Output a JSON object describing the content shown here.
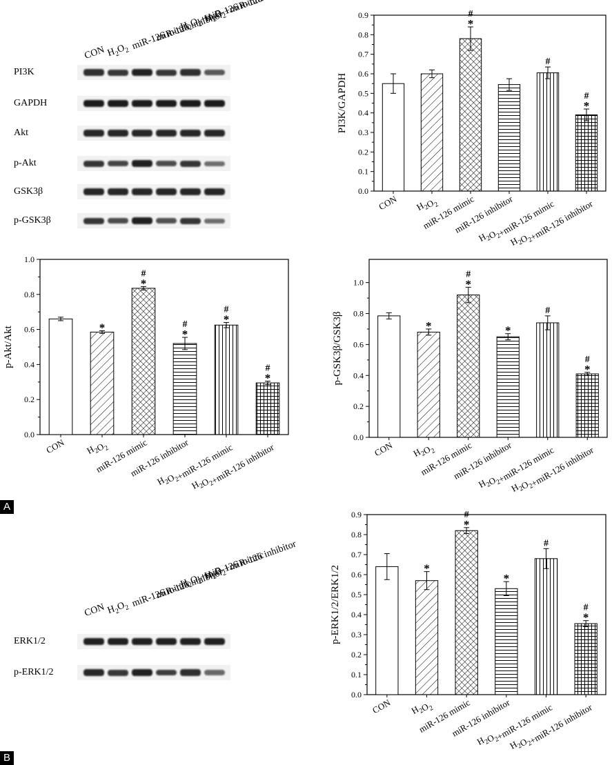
{
  "panel_labels": [
    "A",
    "B"
  ],
  "lane_labels": [
    "CON",
    "H2O2",
    "miR-126 mimic",
    "miR-126 inhibitor",
    "H2O2+miR-126 mimic",
    "H2O2+miR-126 inhibitor"
  ],
  "blot_A": {
    "rows": [
      "PI3K",
      "GAPDH",
      "Akt",
      "p-Akt",
      "GSK3β",
      "p-GSK3β"
    ],
    "intensities": [
      [
        0.85,
        0.8,
        0.95,
        0.8,
        0.85,
        0.55
      ],
      [
        1.0,
        1.0,
        1.0,
        1.0,
        1.0,
        1.0
      ],
      [
        0.9,
        0.9,
        0.9,
        0.9,
        0.9,
        0.9
      ],
      [
        0.8,
        0.7,
        0.95,
        0.65,
        0.8,
        0.4
      ],
      [
        0.9,
        0.9,
        0.9,
        0.9,
        0.9,
        0.9
      ],
      [
        0.8,
        0.65,
        0.95,
        0.6,
        0.8,
        0.4
      ]
    ]
  },
  "blot_B": {
    "rows": [
      "ERK1/2",
      "p-ERK1/2"
    ],
    "intensities": [
      [
        0.95,
        0.95,
        0.95,
        0.95,
        0.95,
        0.95
      ],
      [
        0.9,
        0.8,
        0.95,
        0.75,
        0.85,
        0.45
      ]
    ]
  },
  "chart_data": [
    {
      "type": "bar",
      "ylabel": "PI3K/GAPDH",
      "categories": [
        "CON",
        "H2O2",
        "miR-126 mimic",
        "miR-126 inhibitor",
        "H2O2+miR-126 mimic",
        "H2O2+miR-126 inhibitor"
      ],
      "values": [
        0.55,
        0.6,
        0.78,
        0.545,
        0.605,
        0.39
      ],
      "errors": [
        0.05,
        0.02,
        0.06,
        0.03,
        0.03,
        0.03
      ],
      "annotations": [
        "",
        "",
        "#\n*",
        "",
        "#",
        "#\n*"
      ],
      "ylim": [
        0,
        0.9
      ],
      "yticks": [
        "0.0",
        "0.1",
        "0.2",
        "0.3",
        "0.4",
        "0.5",
        "0.6",
        "0.7",
        "0.8",
        "0.9"
      ]
    },
    {
      "type": "bar",
      "ylabel": "p-Akt/Akt",
      "categories": [
        "CON",
        "H2O2",
        "miR-126 mimic",
        "miR-126 inhibitor",
        "H2O2+miR-126 mimic",
        "H2O2+miR-126 inhibitor"
      ],
      "values": [
        0.66,
        0.585,
        0.835,
        0.52,
        0.625,
        0.295
      ],
      "errors": [
        0.01,
        0.008,
        0.01,
        0.035,
        0.015,
        0.01
      ],
      "annotations": [
        "",
        "*",
        "#\n*",
        "#\n*",
        "#\n*",
        "#\n*"
      ],
      "ylim": [
        0,
        1.0
      ],
      "yticks": [
        "0.0",
        "0.2",
        "0.4",
        "0.6",
        "0.8",
        "1.0"
      ]
    },
    {
      "type": "bar",
      "ylabel": "p-GSK3β/GSK3β",
      "categories": [
        "CON",
        "H2O2",
        "miR-126 mimic",
        "miR-126 inhibitor",
        "H2O2+miR-126 mimic",
        "H2O2+miR-126 inhibitor"
      ],
      "values": [
        0.785,
        0.68,
        0.92,
        0.65,
        0.74,
        0.41
      ],
      "errors": [
        0.02,
        0.02,
        0.05,
        0.02,
        0.045,
        0.01
      ],
      "annotations": [
        "",
        "*",
        "#\n*",
        "*",
        "#",
        "#\n*"
      ],
      "ylim": [
        0,
        1.15
      ],
      "yticks": [
        "0.0",
        "0.2",
        "0.4",
        "0.6",
        "0.8",
        "1.0"
      ]
    },
    {
      "type": "bar",
      "ylabel": "p-ERK1/2/ERK1/2",
      "categories": [
        "CON",
        "H2O2",
        "miR-126 mimic",
        "miR-126 inhibitor",
        "H2O2+miR-126 mimic",
        "H2O2+miR-126 inhibitor"
      ],
      "values": [
        0.64,
        0.57,
        0.82,
        0.53,
        0.68,
        0.355
      ],
      "errors": [
        0.065,
        0.045,
        0.015,
        0.035,
        0.05,
        0.015
      ],
      "annotations": [
        "",
        "*",
        "#\n*",
        "*",
        "#",
        "#\n*"
      ],
      "ylim": [
        0,
        0.9
      ],
      "yticks": [
        "0.0",
        "0.1",
        "0.2",
        "0.3",
        "0.4",
        "0.5",
        "0.6",
        "0.7",
        "0.8",
        "0.9"
      ]
    }
  ]
}
